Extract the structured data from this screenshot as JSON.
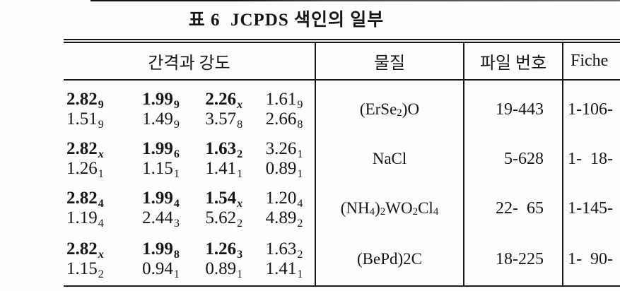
{
  "title": "표 6  JCPDS 색인의 일부",
  "colors": {
    "ink": "#161616",
    "paper": "#fdfdfd"
  },
  "table": {
    "headers": [
      {
        "id": "spacing_intensity",
        "label": "간격과 강도"
      },
      {
        "id": "substance",
        "label": "물질"
      },
      {
        "id": "file_number",
        "label": "파일 번호"
      },
      {
        "id": "fiche",
        "label": "Fiche"
      }
    ],
    "rows": [
      {
        "d_lines": [
          [
            {
              "v": "2.82",
              "s": "9",
              "b": true
            },
            {
              "v": "1.99",
              "s": "9",
              "b": true
            },
            {
              "v": "2.26",
              "s": "x",
              "b": true
            },
            {
              "v": "1.61",
              "s": "9",
              "b": false
            }
          ],
          [
            {
              "v": "1.51",
              "s": "9",
              "b": false
            },
            {
              "v": "1.49",
              "s": "9",
              "b": false
            },
            {
              "v": "3.57",
              "s": "8",
              "b": false
            },
            {
              "v": "2.66",
              "s": "8",
              "b": false
            }
          ]
        ],
        "substance": [
          {
            "t": "(ErSe"
          },
          {
            "t": "2",
            "sub": true
          },
          {
            "t": ")O"
          }
        ],
        "file_no": "19-443",
        "fiche": "1-106-"
      },
      {
        "d_lines": [
          [
            {
              "v": "2.82",
              "s": "x",
              "b": true
            },
            {
              "v": "1.99",
              "s": "6",
              "b": true
            },
            {
              "v": "1.63",
              "s": "2",
              "b": true
            },
            {
              "v": "3.26",
              "s": "1",
              "b": false
            }
          ],
          [
            {
              "v": "1.26",
              "s": "1",
              "b": false
            },
            {
              "v": "1.15",
              "s": "1",
              "b": false
            },
            {
              "v": "1.41",
              "s": "1",
              "b": false
            },
            {
              "v": "0.89",
              "s": "1",
              "b": false
            }
          ]
        ],
        "substance": [
          {
            "t": "NaCl"
          }
        ],
        "file_no": "5-628",
        "fiche": "1-  18-"
      },
      {
        "d_lines": [
          [
            {
              "v": "2.82",
              "s": "4",
              "b": true
            },
            {
              "v": "1.99",
              "s": "4",
              "b": true
            },
            {
              "v": "1.54",
              "s": "x",
              "b": true
            },
            {
              "v": "1.20",
              "s": "4",
              "b": false
            }
          ],
          [
            {
              "v": "1.19",
              "s": "4",
              "b": false
            },
            {
              "v": "2.44",
              "s": "3",
              "b": false
            },
            {
              "v": "5.62",
              "s": "2",
              "b": false
            },
            {
              "v": "4.89",
              "s": "2",
              "b": false
            }
          ]
        ],
        "substance": [
          {
            "t": "(NH"
          },
          {
            "t": "4",
            "sub": true
          },
          {
            "t": ")"
          },
          {
            "t": "2",
            "sub": true
          },
          {
            "t": "WO"
          },
          {
            "t": "2",
            "sub": true
          },
          {
            "t": "Cl"
          },
          {
            "t": "4",
            "sub": true
          }
        ],
        "file_no": "22-  65",
        "fiche": "1-145-"
      },
      {
        "d_lines": [
          [
            {
              "v": "2.82",
              "s": "x",
              "b": true
            },
            {
              "v": "1.99",
              "s": "8",
              "b": true
            },
            {
              "v": "1.26",
              "s": "3",
              "b": true
            },
            {
              "v": "1.63",
              "s": "2",
              "b": false
            }
          ],
          [
            {
              "v": "1.15",
              "s": "2",
              "b": false
            },
            {
              "v": "0.94",
              "s": "1",
              "b": false
            },
            {
              "v": "0.89",
              "s": "1",
              "b": false
            },
            {
              "v": "1.41",
              "s": "1",
              "b": false
            }
          ]
        ],
        "substance": [
          {
            "t": "(BePd)2C"
          }
        ],
        "file_no": "18-225",
        "fiche": "1-  90-"
      }
    ]
  }
}
